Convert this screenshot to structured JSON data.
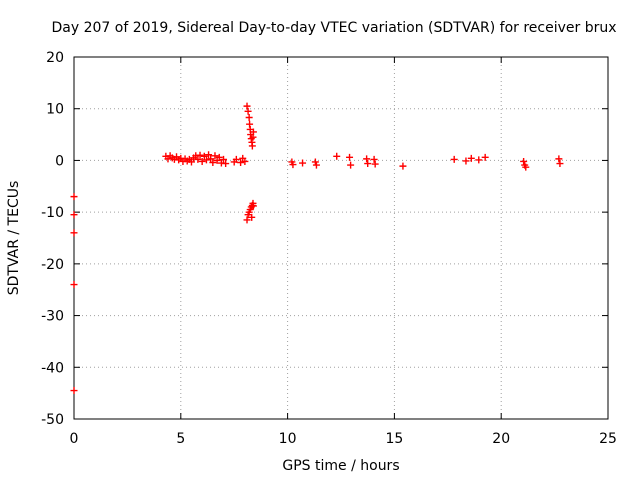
{
  "chart_data": {
    "type": "scatter",
    "title": "Day 207 of 2019, Sidereal Day-to-day VTEC variation (SDTVAR) for receiver brux",
    "xlabel": "GPS time / hours",
    "ylabel": "SDTVAR / TECUs",
    "xlim": [
      0,
      25
    ],
    "ylim": [
      -50,
      20
    ],
    "xticks": [
      0,
      5,
      10,
      15,
      20,
      25
    ],
    "yticks": [
      20,
      10,
      0,
      -10,
      -20,
      -30,
      -40,
      -50
    ],
    "xtick_labels": [
      "0",
      "5",
      "10",
      "15",
      "20",
      "25"
    ],
    "ytick_labels": [
      "20",
      "10",
      "0",
      "-10",
      "-20",
      "-30",
      "-40",
      "-50"
    ],
    "grid": true,
    "legend": "none",
    "marker": "plus",
    "color": "#ff0000",
    "series": [
      {
        "name": "SDTVAR",
        "points": [
          [
            0.0,
            -7
          ],
          [
            0.0,
            -10.5
          ],
          [
            0.0,
            -14
          ],
          [
            0.0,
            -24
          ],
          [
            0.0,
            -44.5
          ],
          [
            4.3,
            0.8
          ],
          [
            4.4,
            0.3
          ],
          [
            4.5,
            0.9
          ],
          [
            4.6,
            0.5
          ],
          [
            4.7,
            0.2
          ],
          [
            4.8,
            0.7
          ],
          [
            4.9,
            0.1
          ],
          [
            5.0,
            0.4
          ],
          [
            5.1,
            -0.2
          ],
          [
            5.2,
            0.3
          ],
          [
            5.3,
            -0.1
          ],
          [
            5.4,
            0.2
          ],
          [
            5.5,
            -0.3
          ],
          [
            5.6,
            0.5
          ],
          [
            5.7,
            0.9
          ],
          [
            5.8,
            0.2
          ],
          [
            5.9,
            1.0
          ],
          [
            6.0,
            -0.2
          ],
          [
            6.1,
            0.8
          ],
          [
            6.2,
            0.1
          ],
          [
            6.3,
            1.1
          ],
          [
            6.4,
            0.3
          ],
          [
            6.5,
            -0.4
          ],
          [
            6.6,
            0.9
          ],
          [
            6.7,
            0.0
          ],
          [
            6.8,
            0.6
          ],
          [
            6.9,
            -0.5
          ],
          [
            7.0,
            0.2
          ],
          [
            7.1,
            -0.6
          ],
          [
            7.5,
            -0.3
          ],
          [
            7.6,
            0.2
          ],
          [
            7.8,
            -0.4
          ],
          [
            7.9,
            0.4
          ],
          [
            8.0,
            -0.2
          ],
          [
            8.1,
            10.5
          ],
          [
            8.15,
            9.5
          ],
          [
            8.2,
            8.3
          ],
          [
            8.22,
            7.0
          ],
          [
            8.25,
            6.0
          ],
          [
            8.27,
            5.0
          ],
          [
            8.3,
            4.2
          ],
          [
            8.33,
            3.5
          ],
          [
            8.35,
            2.8
          ],
          [
            8.38,
            4.5
          ],
          [
            8.4,
            5.5
          ],
          [
            8.1,
            -11.5
          ],
          [
            8.15,
            -10.5
          ],
          [
            8.2,
            -10.0
          ],
          [
            8.25,
            -9.5
          ],
          [
            8.3,
            -9.0
          ],
          [
            8.35,
            -8.7
          ],
          [
            8.38,
            -8.3
          ],
          [
            8.4,
            -8.8
          ],
          [
            8.32,
            -11.0
          ],
          [
            10.2,
            -0.3
          ],
          [
            10.25,
            -0.8
          ],
          [
            10.7,
            -0.5
          ],
          [
            11.3,
            -0.3
          ],
          [
            11.35,
            -0.9
          ],
          [
            12.3,
            0.8
          ],
          [
            12.9,
            0.6
          ],
          [
            12.95,
            -0.9
          ],
          [
            13.7,
            0.3
          ],
          [
            13.75,
            -0.6
          ],
          [
            14.05,
            0.2
          ],
          [
            14.1,
            -0.7
          ],
          [
            15.4,
            -1.1
          ],
          [
            17.8,
            0.2
          ],
          [
            18.35,
            -0.1
          ],
          [
            18.6,
            0.4
          ],
          [
            18.95,
            0.1
          ],
          [
            19.25,
            0.6
          ],
          [
            21.05,
            -0.2
          ],
          [
            21.1,
            -0.9
          ],
          [
            21.15,
            -1.3
          ],
          [
            22.7,
            0.3
          ],
          [
            22.75,
            -0.6
          ]
        ]
      }
    ]
  }
}
